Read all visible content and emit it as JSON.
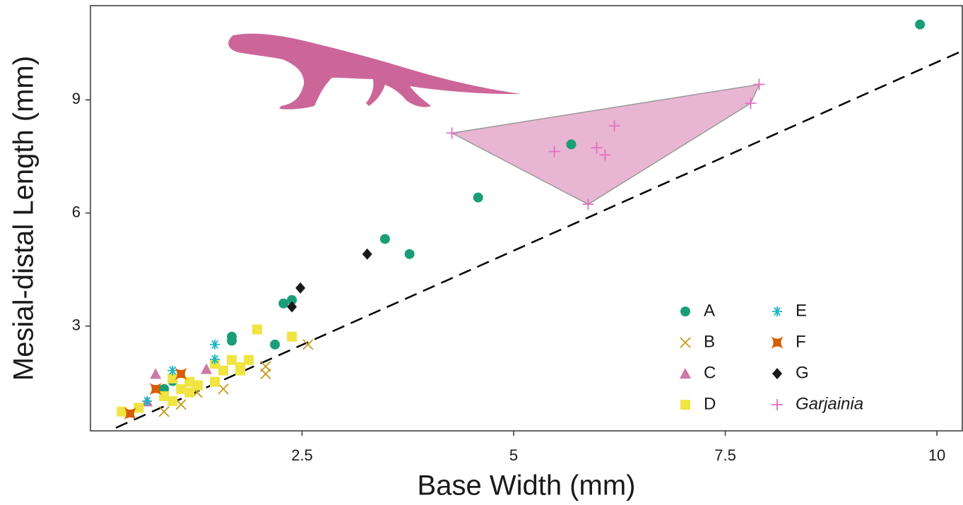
{
  "chart_data": {
    "type": "scatter",
    "x_label": "Base Width (mm)",
    "y_label": "Mesial-distal Length (mm)",
    "xlim": [
      0,
      10.3
    ],
    "ylim": [
      0.22,
      11.5
    ],
    "xticks": [
      2.5,
      5,
      7.5,
      10
    ],
    "yticks": [
      3,
      6,
      9
    ],
    "grid": false,
    "legend": "bottom-right",
    "reference_line": {
      "x": [
        0.3,
        10.3
      ],
      "y": [
        0.3,
        10.3
      ],
      "color": "#000000",
      "dashed": true
    },
    "series": [
      {
        "name": "A",
        "color": "#1b9e77",
        "marker": "circle",
        "x": [
          9.8,
          5.68,
          4.58,
          3.48,
          3.77,
          2.38,
          2.28,
          1.67,
          1.67,
          2.18,
          0.97,
          0.87
        ],
        "values": [
          11.0,
          7.82,
          6.41,
          5.31,
          4.91,
          3.69,
          3.6,
          2.72,
          2.61,
          2.51,
          1.54,
          1.33
        ]
      },
      {
        "name": "B",
        "color": "#c49a1c",
        "marker": "x",
        "x": [
          2.57,
          2.07,
          2.07,
          1.57,
          1.26,
          1.07,
          0.87
        ],
        "values": [
          2.51,
          1.93,
          1.73,
          1.33,
          1.24,
          0.92,
          0.73
        ]
      },
      {
        "name": "C",
        "color": "#cc79a7",
        "marker": "triangle",
        "x": [
          0.77,
          1.37,
          0.67
        ],
        "values": [
          1.73,
          1.86,
          1.0
        ]
      },
      {
        "name": "D",
        "color": "#f0e442",
        "marker": "square",
        "x": [
          1.97,
          2.38,
          1.47,
          1.67,
          1.87,
          1.57,
          1.77,
          1.77,
          1.47,
          1.17,
          1.27,
          0.97,
          1.07,
          1.17,
          0.87,
          0.97,
          0.57,
          0.37
        ],
        "values": [
          2.91,
          2.72,
          2.0,
          2.1,
          2.1,
          1.82,
          1.91,
          1.82,
          1.52,
          1.52,
          1.43,
          1.61,
          1.33,
          1.24,
          1.14,
          1.01,
          0.83,
          0.73
        ]
      },
      {
        "name": "E",
        "color": "#17b4c4",
        "marker": "asterisk",
        "x": [
          1.47,
          1.47,
          0.97,
          0.67
        ],
        "values": [
          2.51,
          2.12,
          1.82,
          1.01
        ]
      },
      {
        "name": "F",
        "color": "#d55e00",
        "marker": "star4",
        "x": [
          1.07,
          0.77,
          0.47
        ],
        "values": [
          1.73,
          1.33,
          0.68
        ]
      },
      {
        "name": "G",
        "color": "#1a1a1a",
        "marker": "diamond",
        "x": [
          3.27,
          2.48,
          2.38
        ],
        "values": [
          4.91,
          4.01,
          3.51
        ]
      },
      {
        "name": "Garjainia",
        "color": "#e36fc0",
        "marker": "plus",
        "italic": true,
        "hull": true,
        "hull_color": "#e8b6d2",
        "x": [
          4.27,
          5.48,
          5.98,
          6.08,
          6.19,
          5.88,
          7.8,
          7.9
        ],
        "values": [
          8.12,
          7.63,
          7.73,
          7.54,
          8.31,
          6.23,
          8.91,
          9.41
        ]
      }
    ]
  }
}
